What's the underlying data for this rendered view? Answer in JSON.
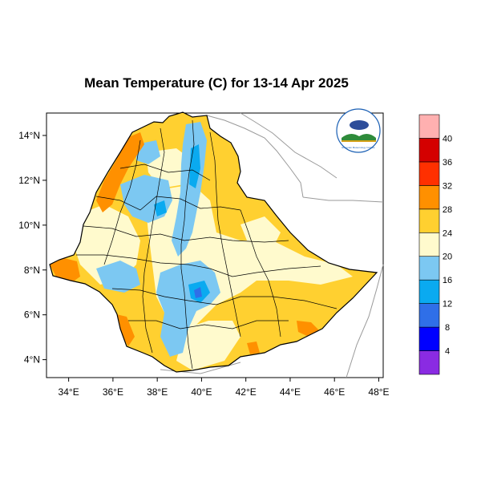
{
  "title": "Mean Temperature (C) for 13-14 Apr 2025",
  "axes": {
    "lat_ticks": [
      "4°N",
      "6°N",
      "8°N",
      "10°N",
      "12°N",
      "14°N"
    ],
    "lon_ticks": [
      "34°E",
      "36°E",
      "38°E",
      "40°E",
      "42°E",
      "44°E",
      "46°E",
      "48°E"
    ],
    "lon_range": [
      33,
      48.2
    ],
    "lat_range": [
      3.2,
      15
    ]
  },
  "colorbar": {
    "labels": [
      "4",
      "8",
      "12",
      "16",
      "20",
      "24",
      "28",
      "32",
      "36",
      "40"
    ],
    "colors": [
      "#8a2be2",
      "#0000ff",
      "#2f6fe8",
      "#0aaaf0",
      "#7cc8f2",
      "#fffacd",
      "#ffd030",
      "#ff9000",
      "#ff3000",
      "#d40000",
      "#ffb0b0"
    ]
  },
  "colors": {
    "cool_blue": "#7cc8f2",
    "mid_blue": "#0aaaf0",
    "deep_blue": "#2f6fe8",
    "pale_yellow": "#fffacd",
    "yellow": "#ffd030",
    "orange": "#ff9000",
    "red": "#ff3000",
    "border": "#000000",
    "neighbor": "#9a9a9a"
  },
  "logo": {
    "text": "Ethiopian Meteorology Institute"
  }
}
